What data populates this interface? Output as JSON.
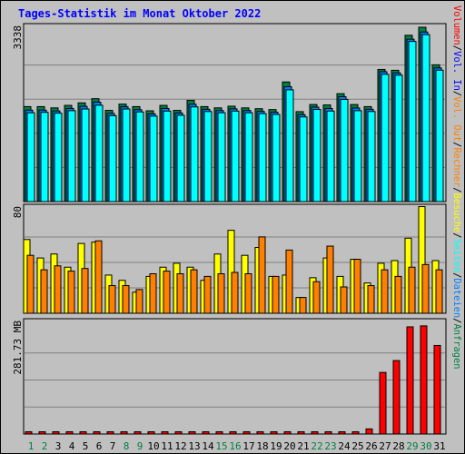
{
  "title": "Tages-Statistik im Monat Oktober 2022",
  "colors": {
    "page_bg": "#c0c0c0",
    "title": "#0000ff",
    "hits": "#008040",
    "files": "#0080ff",
    "pages": "#00ffff",
    "visits": "#ffff00",
    "kbytes_in": "#ff8000",
    "kbytes_out": "#ff8000",
    "volume": "#ff0000",
    "separator": "#000000"
  },
  "chart_data": [
    {
      "type": "bar",
      "categories": [
        "1",
        "2",
        "3",
        "4",
        "5",
        "6",
        "7",
        "8",
        "9",
        "10",
        "11",
        "12",
        "13",
        "14",
        "15",
        "16",
        "17",
        "18",
        "19",
        "20",
        "21",
        "22",
        "23",
        "24",
        "25",
        "26",
        "27",
        "28",
        "29",
        "30",
        "31"
      ],
      "weekend_categories": [
        "1",
        "2",
        "8",
        "9",
        "15",
        "16",
        "22",
        "23",
        "29",
        "30"
      ],
      "ymax_label": "3338",
      "ylim": [
        0,
        3338
      ],
      "series": [
        {
          "name": "Anfragen",
          "values": [
            1818,
            1818,
            1794,
            1842,
            1890,
            1970,
            1746,
            1866,
            1818,
            1738,
            1842,
            1746,
            1938,
            1818,
            1794,
            1826,
            1794,
            1778,
            1762,
            2290,
            1722,
            1858,
            1850,
            2066,
            1858,
            1818,
            2530,
            2514,
            3184,
            3338,
            2618
          ]
        },
        {
          "name": "Dateien",
          "values": [
            1786,
            1786,
            1770,
            1818,
            1858,
            1938,
            1722,
            1850,
            1794,
            1714,
            1818,
            1730,
            1898,
            1802,
            1778,
            1810,
            1778,
            1762,
            1746,
            2234,
            1698,
            1842,
            1818,
            2042,
            1826,
            1802,
            2522,
            2498,
            3144,
            3282,
            2594
          ]
        },
        {
          "name": "Seiten",
          "values": [
            1770,
            1778,
            1762,
            1810,
            1842,
            1914,
            1714,
            1842,
            1786,
            1706,
            1802,
            1722,
            1882,
            1794,
            1770,
            1802,
            1770,
            1754,
            1738,
            2210,
            1690,
            1834,
            1802,
            2026,
            1810,
            1794,
            2506,
            2490,
            3136,
            3266,
            2586
          ]
        }
      ],
      "grid": true
    },
    {
      "type": "bar",
      "categories": [
        "1",
        "2",
        "3",
        "4",
        "5",
        "6",
        "7",
        "8",
        "9",
        "10",
        "11",
        "12",
        "13",
        "14",
        "15",
        "16",
        "17",
        "18",
        "19",
        "20",
        "21",
        "22",
        "23",
        "24",
        "25",
        "26",
        "27",
        "28",
        "29",
        "30",
        "31"
      ],
      "ymax_label": "80",
      "ylim": [
        0,
        80
      ],
      "series": [
        {
          "name": "Besuche",
          "values": [
            56,
            42,
            45,
            35,
            53,
            54,
            29,
            25,
            16,
            28,
            35,
            38,
            35,
            25,
            45,
            63,
            44,
            50,
            28,
            29,
            12,
            27,
            42,
            28,
            41,
            23,
            38,
            40,
            57,
            81,
            40
          ]
        },
        {
          "name": "Rechner",
          "values": [
            44,
            33,
            36,
            32,
            34,
            55,
            21,
            21,
            18,
            30,
            32,
            30,
            33,
            28,
            30,
            31,
            30,
            58,
            28,
            48,
            12,
            24,
            51,
            20,
            41,
            21,
            33,
            28,
            35,
            37,
            33
          ]
        }
      ],
      "grid": true
    },
    {
      "type": "bar",
      "categories": [
        "1",
        "2",
        "3",
        "4",
        "5",
        "6",
        "7",
        "8",
        "9",
        "10",
        "11",
        "12",
        "13",
        "14",
        "15",
        "16",
        "17",
        "18",
        "19",
        "20",
        "21",
        "22",
        "23",
        "24",
        "25",
        "26",
        "27",
        "28",
        "29",
        "30",
        "31"
      ],
      "ymax_label": "281.73 MB",
      "ylim": [
        0,
        281.73
      ],
      "series": [
        {
          "name": "Volumen",
          "values": [
            5.7,
            5.7,
            5.7,
            5.7,
            5.7,
            5.7,
            5.7,
            5.7,
            5.7,
            5.7,
            5.7,
            5.7,
            5.7,
            5.7,
            5.7,
            5.7,
            5.7,
            5.7,
            5.7,
            5.7,
            5.7,
            5.7,
            5.7,
            5.7,
            5.7,
            12.9,
            155.4,
            185.3,
            270.4,
            272.8,
            223.4
          ]
        }
      ],
      "grid": true
    }
  ],
  "legend_right": [
    {
      "text": "Anfragen",
      "color": "#008040"
    },
    {
      "text": "/",
      "color": "#000000"
    },
    {
      "text": "Dateien",
      "color": "#0080ff"
    },
    {
      "text": "/",
      "color": "#000000"
    },
    {
      "text": "Seiten",
      "color": "#00ffff"
    },
    {
      "text": "/",
      "color": "#000000"
    },
    {
      "text": "Besuche",
      "color": "#ffff00"
    },
    {
      "text": "/",
      "color": "#000000"
    },
    {
      "text": "Rechner",
      "color": "#ff8000"
    },
    {
      "text": "/",
      "color": "#000000"
    },
    {
      "text": "Vol. Out",
      "color": "#ff8000"
    },
    {
      "text": "/",
      "color": "#000000"
    },
    {
      "text": "Vol. In",
      "color": "#0000ff"
    },
    {
      "text": "/",
      "color": "#000000"
    },
    {
      "text": "Volumen",
      "color": "#ff0000"
    }
  ]
}
